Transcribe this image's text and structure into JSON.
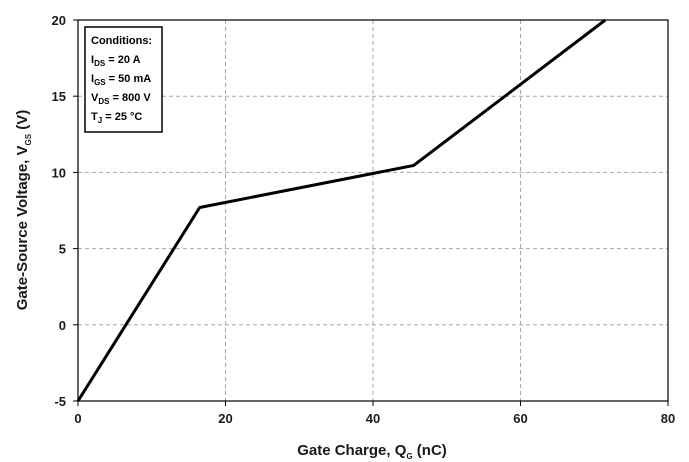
{
  "chart_data": {
    "type": "line",
    "xlim": [
      0,
      80
    ],
    "ylim": [
      -5,
      20
    ],
    "x_ticks": [
      "0",
      "20",
      "40",
      "60",
      "80"
    ],
    "y_ticks": [
      "-5",
      "0",
      "5",
      "10",
      "15",
      "20"
    ],
    "x_tick_values": [
      0,
      20,
      40,
      60,
      80
    ],
    "y_tick_values": [
      -5,
      0,
      5,
      10,
      15,
      20
    ],
    "grid": true,
    "xlabel": {
      "main": "Gate Charge, Q",
      "sub": "G",
      "tail": " (nC)"
    },
    "ylabel": {
      "main": "Gate-Source Voltage, V",
      "sub": "GS",
      "tail": " (V)"
    },
    "series": [
      {
        "x": [
          0,
          16.5,
          45.5,
          71.5
        ],
        "y": [
          -5,
          7.7,
          10.45,
          20
        ]
      }
    ],
    "conditions": {
      "title": "Conditions:",
      "lines": [
        {
          "main": "I",
          "sub": "DS",
          "tail": " = 20 A"
        },
        {
          "main": "I",
          "sub": "GS",
          "tail": " = 50 mA"
        },
        {
          "main": "V",
          "sub": "DS",
          "tail": " = 800 V"
        },
        {
          "main": "T",
          "sub": "J",
          "tail": " = 25 °C"
        }
      ]
    }
  }
}
